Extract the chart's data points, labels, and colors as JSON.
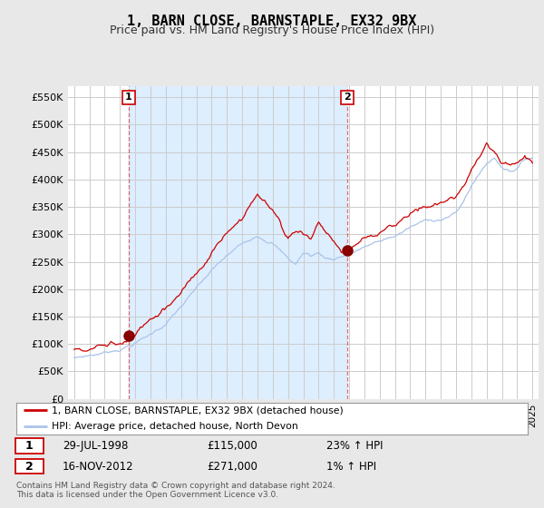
{
  "title": "1, BARN CLOSE, BARNSTAPLE, EX32 9BX",
  "subtitle": "Price paid vs. HM Land Registry's House Price Index (HPI)",
  "ylabel_ticks": [
    "£0",
    "£50K",
    "£100K",
    "£150K",
    "£200K",
    "£250K",
    "£300K",
    "£350K",
    "£400K",
    "£450K",
    "£500K",
    "£550K"
  ],
  "ytick_values": [
    0,
    50000,
    100000,
    150000,
    200000,
    250000,
    300000,
    350000,
    400000,
    450000,
    500000,
    550000
  ],
  "ylim": [
    0,
    570000
  ],
  "hpi_color": "#aac4e8",
  "price_color": "#cc0000",
  "bg_color": "#e8e8e8",
  "plot_bg_color": "#ffffff",
  "shade_color": "#ddeeff",
  "legend_label_price": "1, BARN CLOSE, BARNSTAPLE, EX32 9BX (detached house)",
  "legend_label_hpi": "HPI: Average price, detached house, North Devon",
  "sale1_date": "29-JUL-1998",
  "sale1_price": "£115,000",
  "sale1_hpi": "23% ↑ HPI",
  "sale2_date": "16-NOV-2012",
  "sale2_price": "£271,000",
  "sale2_hpi": "1% ↑ HPI",
  "footer": "Contains HM Land Registry data © Crown copyright and database right 2024.\nThis data is licensed under the Open Government Licence v3.0.",
  "sale1_year": 1998.57,
  "sale2_year": 2012.88,
  "sale1_value": 115000,
  "sale2_value": 271000,
  "xmin": 1995.0,
  "xmax": 2025.0
}
